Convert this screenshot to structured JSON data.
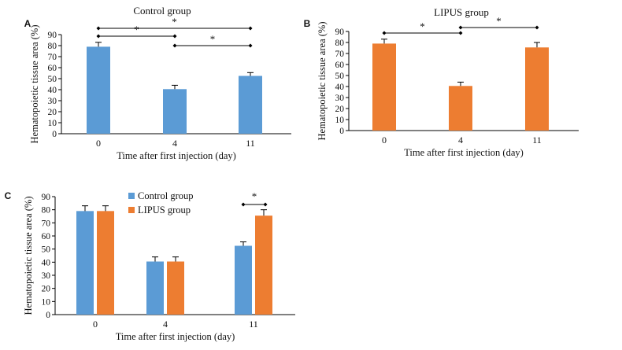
{
  "chart_data": [
    {
      "panel": "A",
      "type": "bar",
      "title": "Control group",
      "xlabel": "Time after first injection (day)",
      "ylabel": "Hematopoietic tissue area (%)",
      "categories": [
        "0",
        "4",
        "11"
      ],
      "series": [
        {
          "values": [
            79,
            40.5,
            52.5
          ],
          "errors": [
            4,
            3.5,
            3
          ],
          "color": "#5b9bd5"
        }
      ],
      "ylim": [
        0,
        90
      ],
      "yticks": [
        "0",
        "10",
        "20",
        "30",
        "40",
        "50",
        "60",
        "70",
        "80",
        "90"
      ],
      "significance": [
        {
          "from": "0",
          "to": "11",
          "label": "*"
        },
        {
          "from": "0",
          "to": "4",
          "label": "*"
        },
        {
          "from": "4",
          "to": "11",
          "label": "*"
        }
      ]
    },
    {
      "panel": "B",
      "type": "bar",
      "title": "LIPUS group",
      "xlabel": "Time after first injection (day)",
      "ylabel": "Hematopoietic tissue area (%)",
      "categories": [
        "0",
        "4",
        "11"
      ],
      "series": [
        {
          "values": [
            79,
            40.5,
            75.5
          ],
          "errors": [
            4,
            3.5,
            4.5
          ],
          "color": "#ed7d31"
        }
      ],
      "ylim": [
        0,
        90
      ],
      "yticks": [
        "0",
        "10",
        "20",
        "30",
        "40",
        "50",
        "60",
        "70",
        "80",
        "90"
      ],
      "significance": [
        {
          "from": "0",
          "to": "4",
          "label": "*"
        },
        {
          "from": "4",
          "to": "11",
          "label": "*"
        }
      ]
    },
    {
      "panel": "C",
      "type": "bar",
      "title": "",
      "xlabel": "Time after first injection (day)",
      "ylabel": "Hematopoietic tissue area (%)",
      "categories": [
        "0",
        "4",
        "11"
      ],
      "series": [
        {
          "name": "Control group",
          "values": [
            79,
            40.5,
            52.5
          ],
          "errors": [
            4,
            3.5,
            3
          ],
          "color": "#5b9bd5"
        },
        {
          "name": "LIPUS group",
          "values": [
            79,
            40.5,
            75.5
          ],
          "errors": [
            4,
            3.5,
            4.5
          ],
          "color": "#ed7d31"
        }
      ],
      "ylim": [
        0,
        90
      ],
      "yticks": [
        "0",
        "10",
        "20",
        "30",
        "40",
        "50",
        "60",
        "70",
        "80",
        "90"
      ],
      "legend": "top-center",
      "significance": [
        {
          "category": "11",
          "label": "*"
        }
      ]
    }
  ]
}
